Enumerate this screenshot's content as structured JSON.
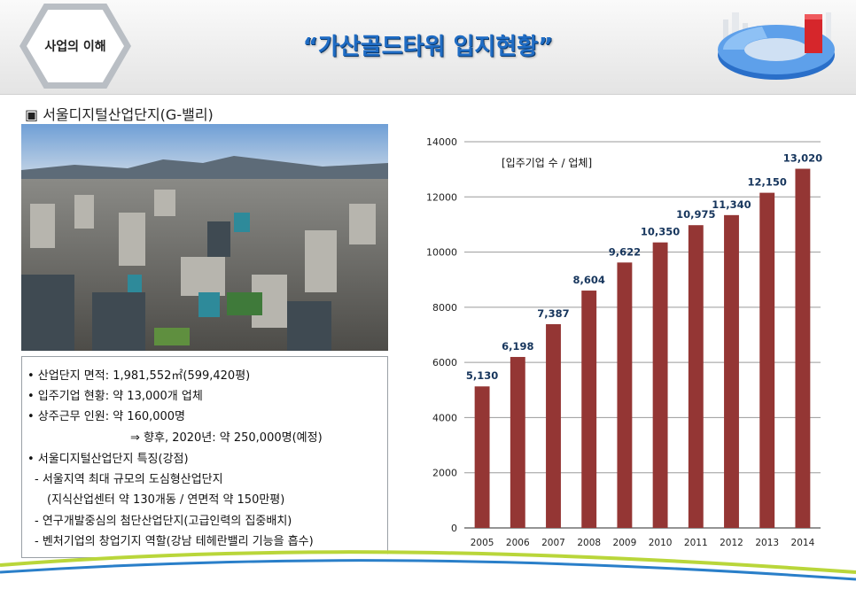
{
  "header": {
    "tag": "사업의 이해",
    "title": "“가산골드타워 입지현황”"
  },
  "section": {
    "title": "▣ 서울디지털산업단지(G-밸리)"
  },
  "photo": {
    "icon": "aerial-city-photo"
  },
  "info": {
    "lines": [
      "• 산업단지  면적: 1,981,552㎡(599,420평)",
      "• 입주기업  현황: 약 13,000개  업체",
      "• 상주근무  인원: 약 160,000명",
      "⇒ 향후,  2020년:  약  250,000명(예정)",
      "• 서울디지털산업단지  특징(강점)",
      "- 서울지역  최대  규모의  도심형산업단지",
      "(지식산업센터  약 130개동  /  연면적  약  150만평)",
      "-  연구개발중심의  첨단산업단지(고급인력의  집중배치)",
      "-  벤처기업의  창업기지  역할(강남  테헤란밸리  기능을  흡수)"
    ]
  },
  "chart_data": {
    "type": "bar",
    "categories": [
      "2005",
      "2006",
      "2007",
      "2008",
      "2009",
      "2010",
      "2011",
      "2012",
      "2013",
      "2014"
    ],
    "values": [
      5130,
      6198,
      7387,
      8604,
      9622,
      10350,
      10975,
      11340,
      12150,
      13020
    ],
    "value_labels": [
      "5,130",
      "6,198",
      "7,387",
      "8,604",
      "9,622",
      "10,350",
      "10,975",
      "11,340",
      "12,150",
      "13,020"
    ],
    "title": "[입주기업 수 / 업체]",
    "ylim": [
      0,
      14000
    ],
    "yticks": [
      0,
      2000,
      4000,
      6000,
      8000,
      10000,
      12000,
      14000
    ],
    "grid": true,
    "bar_color": "#943634"
  }
}
